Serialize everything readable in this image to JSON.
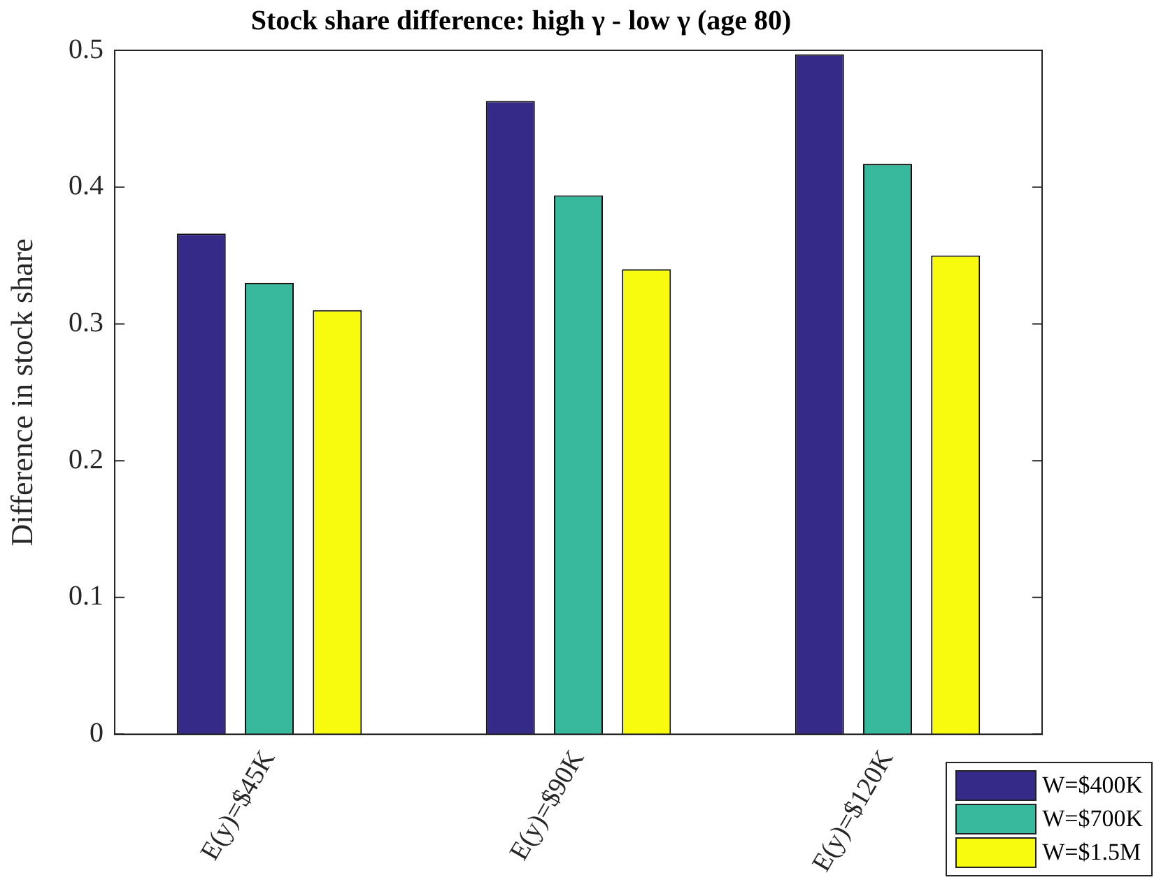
{
  "chart_data": {
    "type": "bar",
    "title": "Stock share difference: high γ - low γ (age 80)",
    "ylabel": "Difference in stock share",
    "categories": [
      "E(y)=$45K",
      "E(y)=$90K",
      "E(y)=$120K"
    ],
    "series": [
      {
        "name": "W=$400K",
        "color": "#352a87",
        "values": [
          0.366,
          0.463,
          0.497
        ]
      },
      {
        "name": "W=$700K",
        "color": "#38b99e",
        "values": [
          0.33,
          0.394,
          0.417
        ]
      },
      {
        "name": "W=$1.5M",
        "color": "#f9fb0e",
        "values": [
          0.31,
          0.34,
          0.35
        ]
      }
    ],
    "ylim": [
      0,
      0.5
    ],
    "yticks": [
      0,
      0.1,
      0.2,
      0.3,
      0.4,
      0.5
    ],
    "grid": false,
    "legend": "bottom right"
  }
}
